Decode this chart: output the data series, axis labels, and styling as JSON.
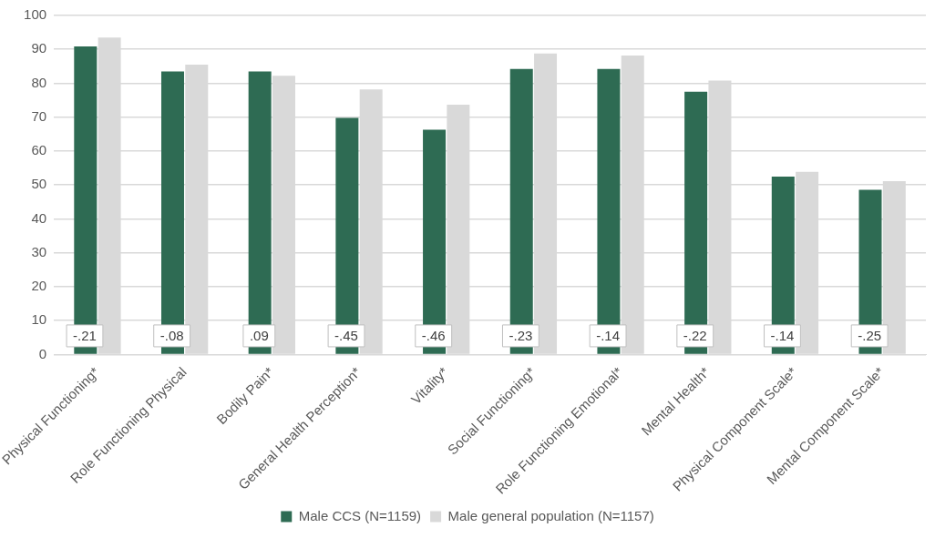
{
  "chart_data": {
    "type": "bar",
    "categories": [
      "Physical Functioning*",
      "Role Functioning Physical",
      "Bodily Pain*",
      "General Health Perception*",
      "Vitality*",
      "Social Functioning*",
      "Role Functioning Emotional*",
      "Mental Health*",
      "Physical Component Scale*",
      "Mental Component Scale*"
    ],
    "series": [
      {
        "name": "Male CCS (N=1159)",
        "color": "#2e6b53",
        "values": [
          90.9,
          83.5,
          83.5,
          69.8,
          66.3,
          84.2,
          84.2,
          77.5,
          52.5,
          48.6
        ]
      },
      {
        "name": "Male general population (N=1157)",
        "color": "#d9d9d9",
        "values": [
          93.5,
          85.5,
          82.2,
          78.2,
          73.7,
          88.8,
          88.2,
          80.8,
          53.9,
          51.1
        ]
      }
    ],
    "ylim": [
      0,
      100
    ],
    "yticks": [
      0,
      10,
      20,
      30,
      40,
      50,
      60,
      70,
      80,
      90,
      100
    ],
    "grid": "y",
    "legend": "bottom",
    "annotations": [
      {
        "text": "-.21",
        "x": "Physical Functioning*",
        "y": 5.5
      },
      {
        "text": "-.08",
        "x": "Role Functioning Physical",
        "y": 5.5
      },
      {
        "text": ".09",
        "x": "Bodily Pain*",
        "y": 5.5
      },
      {
        "text": "-.45",
        "x": "General Health Perception*",
        "y": 5.5
      },
      {
        "text": "-.46",
        "x": "Vitality*",
        "y": 5.5
      },
      {
        "text": "-.23",
        "x": "Social Functioning*",
        "y": 5.5
      },
      {
        "text": "-.14",
        "x": "Role Functioning Emotional*",
        "y": 5.5
      },
      {
        "text": "-.22",
        "x": "Mental Health*",
        "y": 5.5
      },
      {
        "text": "-.14",
        "x": "Physical Component Scale*",
        "y": 5.5
      },
      {
        "text": "-.25",
        "x": "Mental Component Scale*",
        "y": 5.5
      }
    ]
  }
}
